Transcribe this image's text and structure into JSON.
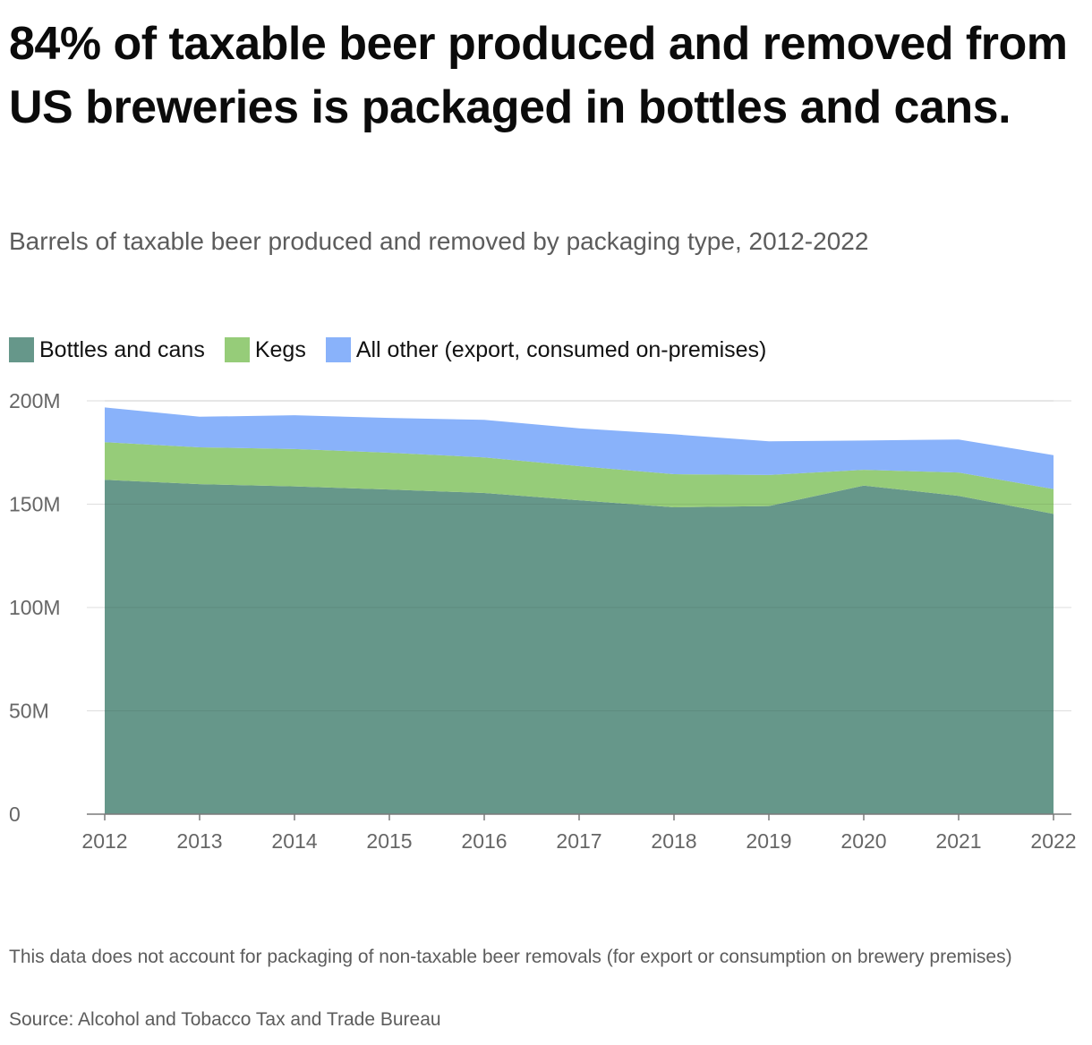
{
  "title": "84% of taxable beer produced and removed from US breweries is packaged in bottles and cans.",
  "subtitle": "Barrels of taxable beer produced and removed by packaging type, 2012-2022",
  "footnote": "This data does not account for packaging of non-taxable beer removals (for export or consumption on brewery premises)",
  "source": "Source: Alcohol and Tobacco Tax and Trade Bureau",
  "legend": [
    {
      "label": "Bottles and cans",
      "color": "#66978a"
    },
    {
      "label": "Kegs",
      "color": "#96cc79"
    },
    {
      "label": "All other (export, consumed on-premises)",
      "color": "#89b2fa"
    }
  ],
  "chart_data": {
    "type": "area",
    "stacked": true,
    "x": [
      2012,
      2013,
      2014,
      2015,
      2016,
      2017,
      2018,
      2019,
      2020,
      2021,
      2022
    ],
    "x_tick_labels": [
      "2012",
      "2013",
      "2014",
      "2015",
      "2016",
      "2017",
      "2018",
      "2019",
      "2020",
      "2021",
      "2022"
    ],
    "y_tick_labels": [
      "0",
      "50M",
      "100M",
      "150M",
      "200M"
    ],
    "y_ticks": [
      0,
      50000000,
      100000000,
      150000000,
      200000000
    ],
    "ylim": [
      0,
      200000000
    ],
    "grid": true,
    "legend_position": "top-left",
    "series": [
      {
        "name": "Bottles and cans",
        "color": "#66978a",
        "values": [
          161800000,
          159700000,
          158600000,
          157100000,
          155400000,
          151900000,
          148500000,
          149100000,
          159000000,
          154000000,
          145300000
        ]
      },
      {
        "name": "Kegs",
        "color": "#96cc79",
        "values": [
          18200000,
          17800000,
          18100000,
          17800000,
          17200000,
          16500000,
          16000000,
          15000000,
          7600000,
          11300000,
          12000000
        ]
      },
      {
        "name": "All other (export, consumed on-premises)",
        "color": "#89b2fa",
        "values": [
          16800000,
          14800000,
          16300000,
          16800000,
          18200000,
          18300000,
          19300000,
          16300000,
          14200000,
          16000000,
          16400000
        ]
      }
    ]
  }
}
